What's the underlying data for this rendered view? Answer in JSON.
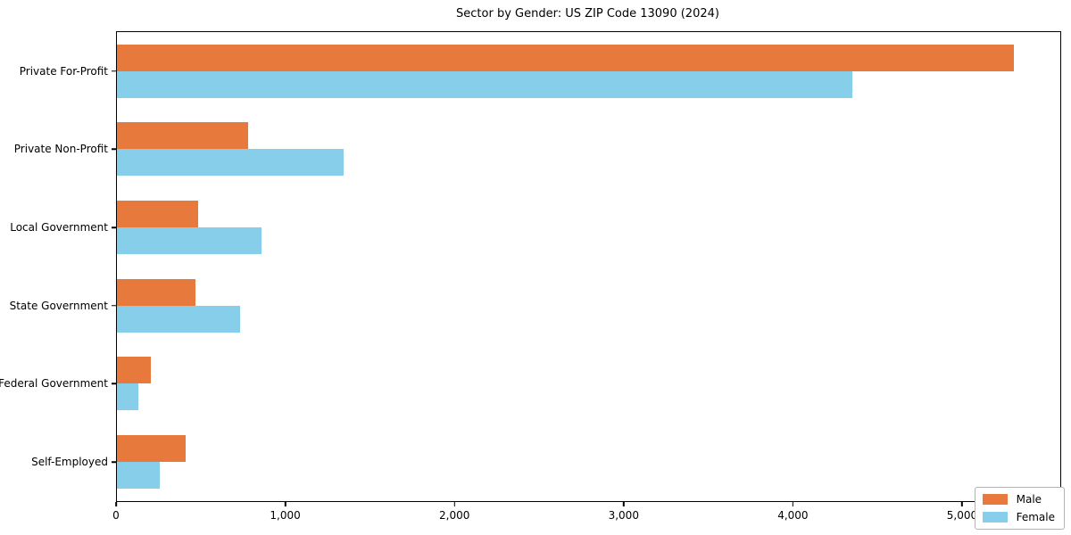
{
  "chart_data": {
    "type": "bar",
    "orientation": "horizontal",
    "title": "Sector by Gender: US ZIP Code 13090 (2024)",
    "categories": [
      "Private For-Profit",
      "Private Non-Profit",
      "Local Government",
      "State Government",
      "Federal Government",
      "Self-Employed"
    ],
    "series": [
      {
        "name": "Male",
        "color": "#e8793d",
        "values": [
          5300,
          775,
          480,
          465,
          200,
          405
        ]
      },
      {
        "name": "Female",
        "color": "#87ceeb",
        "values": [
          4345,
          1340,
          855,
          730,
          125,
          255
        ]
      }
    ],
    "xlabel": "",
    "ylabel": "",
    "xlim": [
      0,
      5575
    ],
    "xticks": [
      0,
      1000,
      2000,
      3000,
      4000,
      5000
    ],
    "xtick_labels": [
      "0",
      "1,000",
      "2,000",
      "3,000",
      "4,000",
      "5,000"
    ],
    "grid": false,
    "legend": {
      "position": "lower right",
      "entries": [
        "Male",
        "Female"
      ]
    }
  }
}
